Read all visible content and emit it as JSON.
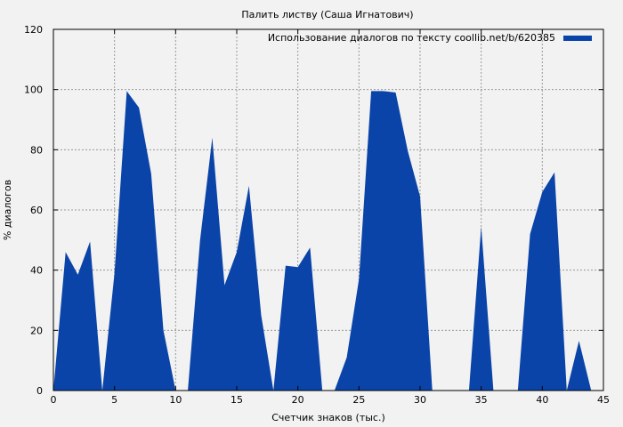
{
  "chart_data": {
    "type": "area",
    "title": "Палить листву (Саша Игнатович)",
    "xlabel": "Счетчик знаков (тыс.)",
    "ylabel": "% диалогов",
    "xlim": [
      0,
      45
    ],
    "ylim": [
      0,
      120
    ],
    "xticks": [
      0,
      5,
      10,
      15,
      20,
      25,
      30,
      35,
      40,
      45
    ],
    "yticks": [
      0,
      20,
      40,
      60,
      80,
      100,
      120
    ],
    "grid": true,
    "legend_position": "top-right",
    "series": [
      {
        "name": "Использование диалогов по тексту coollib.net/b/620385",
        "color": "#0a44a8",
        "x": [
          0,
          1,
          2,
          3,
          4,
          5,
          6,
          7,
          8,
          9,
          10,
          11,
          12,
          13,
          14,
          15,
          16,
          17,
          18,
          19,
          20,
          21,
          22,
          23,
          24,
          25,
          26,
          27,
          28,
          29,
          30,
          31,
          32,
          33,
          34,
          35,
          36,
          37,
          38,
          39,
          40,
          41,
          42,
          43,
          44
        ],
        "values": [
          0,
          46,
          38.5,
          49.5,
          0,
          39,
          99.5,
          94,
          72,
          20,
          0,
          0,
          50,
          84,
          35,
          46,
          68,
          25,
          0,
          41.5,
          41,
          47.5,
          0,
          0,
          11,
          37,
          99.5,
          99.5,
          99,
          79.5,
          64.5,
          0,
          0,
          0,
          0,
          54.5,
          0,
          0,
          0,
          52,
          66,
          72.5,
          0,
          16.5,
          0
        ]
      }
    ]
  }
}
